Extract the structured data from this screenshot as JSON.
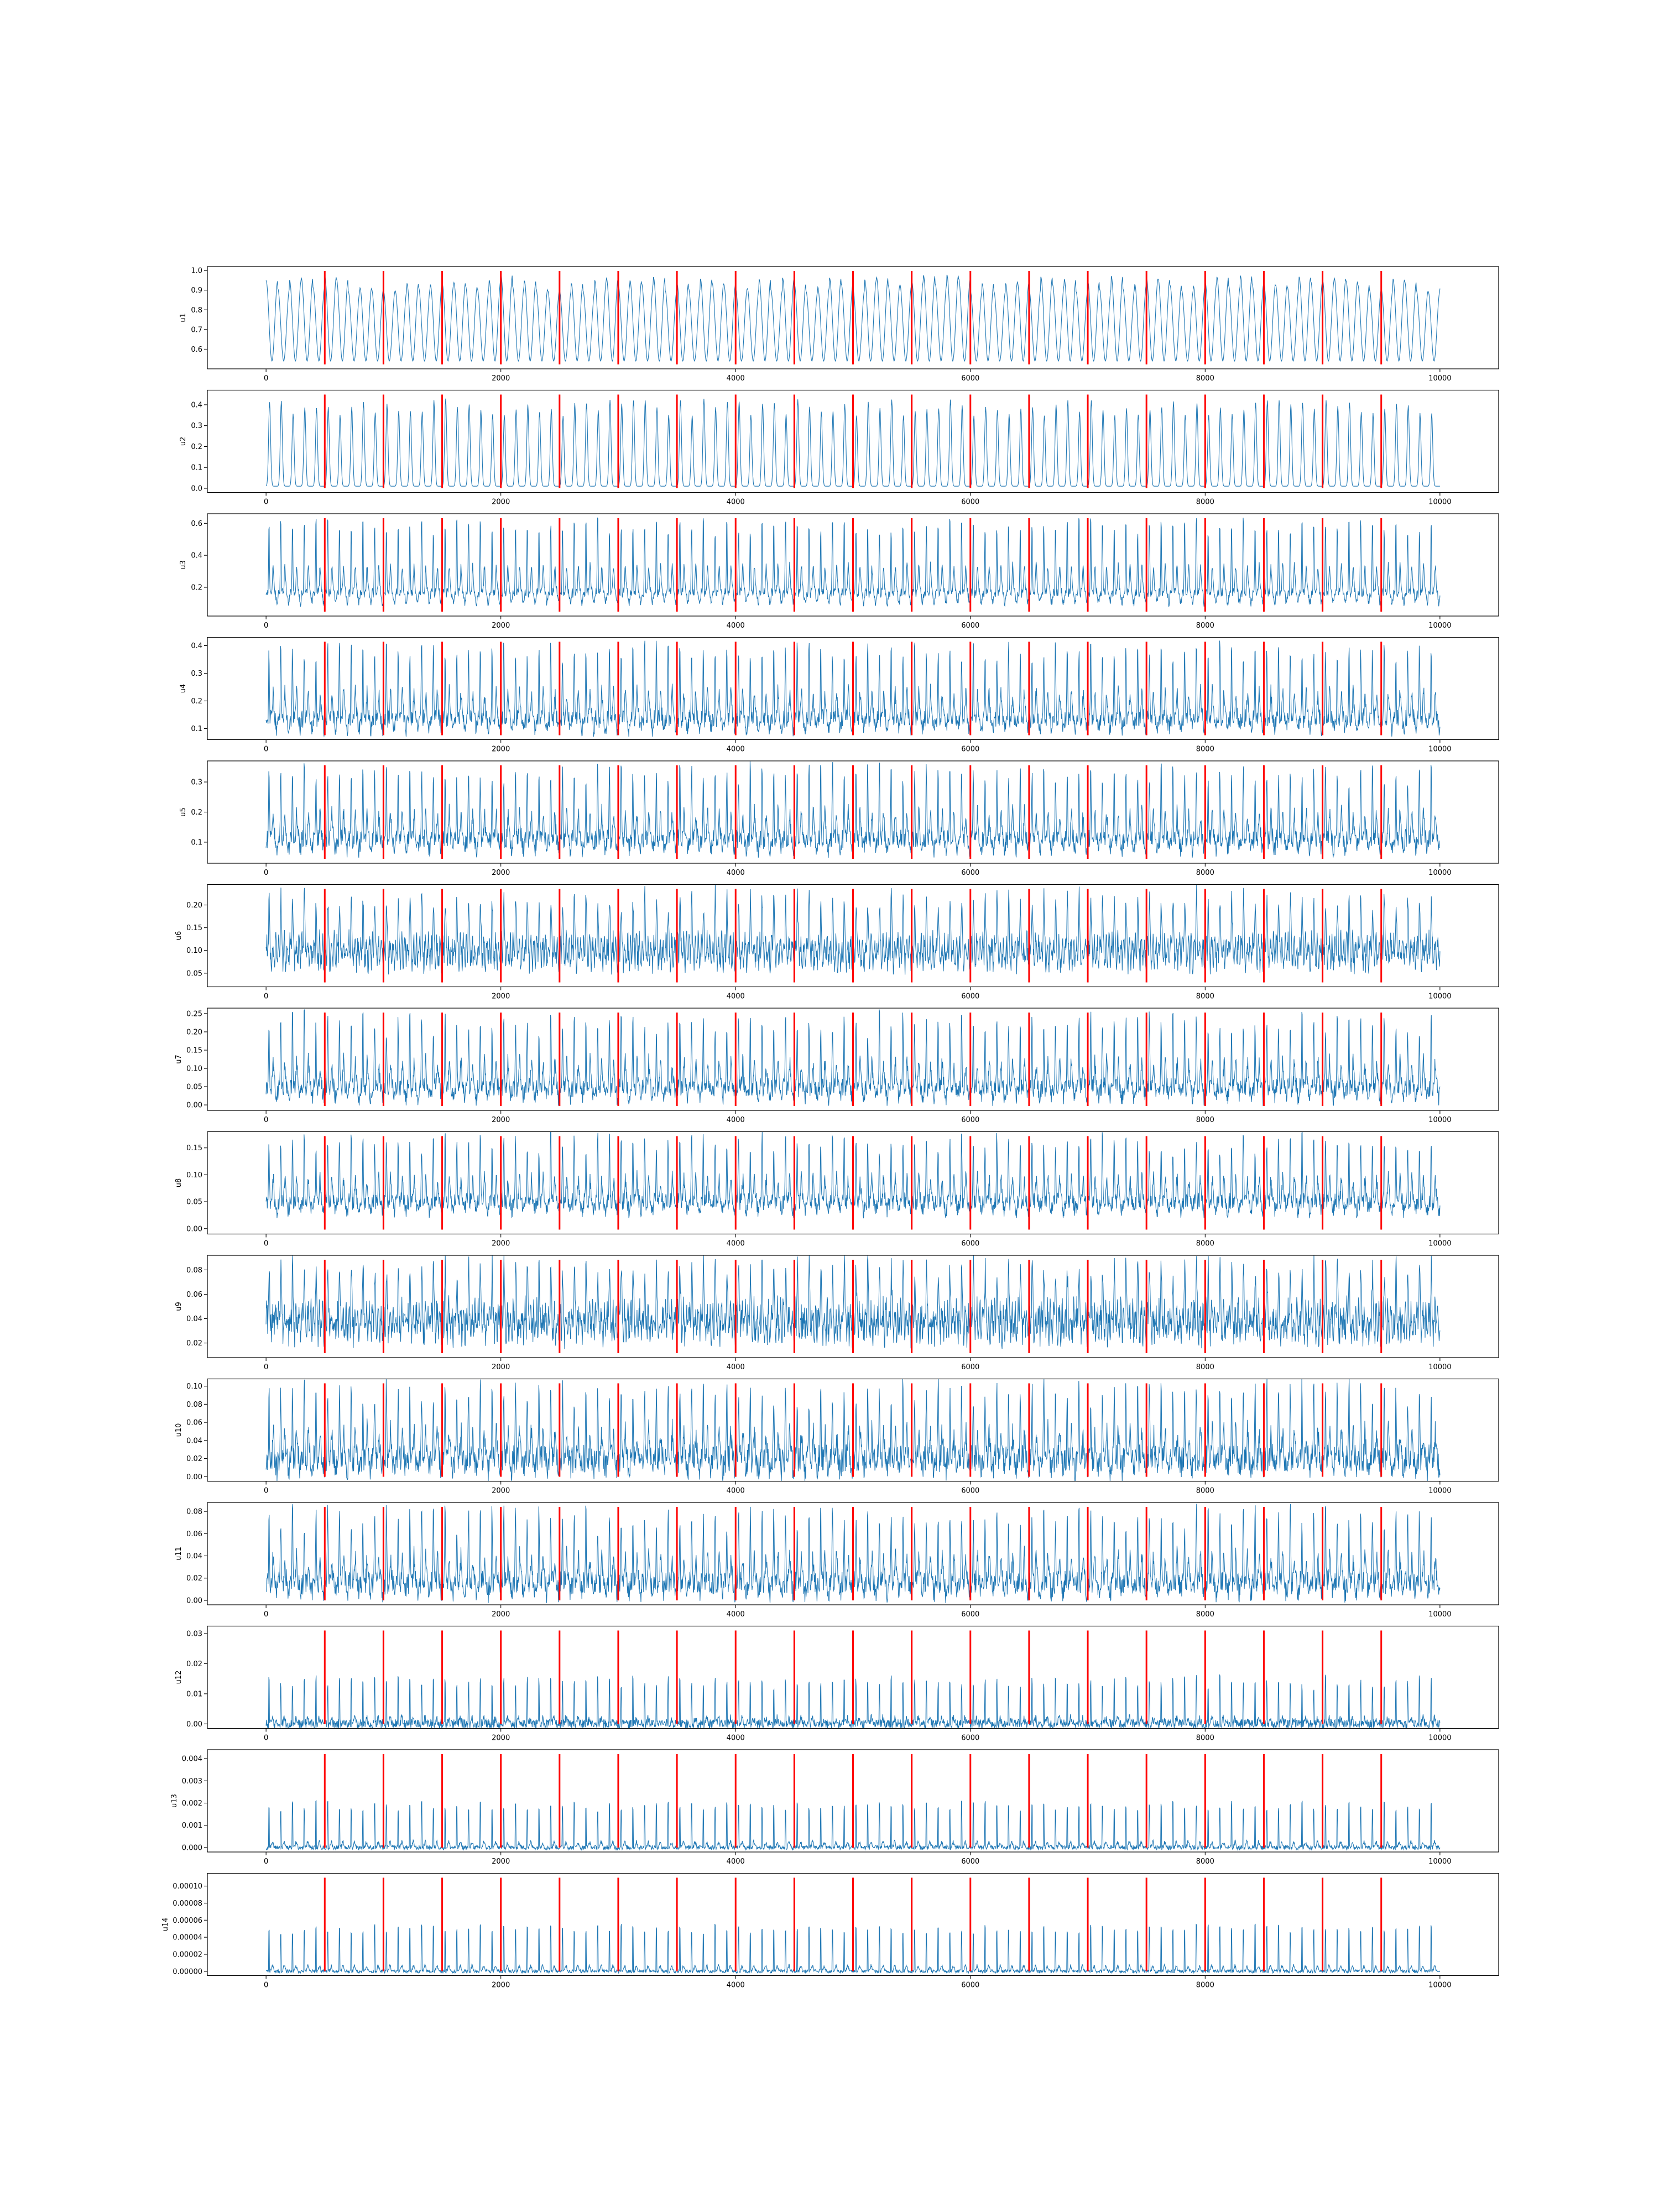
{
  "chart_data": {
    "type": "line",
    "layout": "stacked-subplots",
    "xlim": [
      -500,
      10500
    ],
    "x_ticks": [
      0,
      2000,
      4000,
      6000,
      8000,
      10000
    ],
    "line_color": "#1f77b4",
    "event_color": "#ff0000",
    "event_x": [
      500,
      1000,
      1500,
      2000,
      2500,
      3000,
      3500,
      4000,
      4500,
      5000,
      5500,
      6000,
      6500,
      7000,
      7500,
      8000,
      8500,
      9000,
      9500
    ],
    "x_range": [
      0,
      10000
    ],
    "panels": [
      {
        "ylabel": "u1",
        "ylim": [
          0.5,
          1.02
        ],
        "yticks": [
          0.6,
          0.7,
          0.8,
          0.9,
          1.0
        ],
        "ytick_labels": [
          "0.6",
          "0.7",
          "0.8",
          "0.9",
          "1.0"
        ],
        "signal": {
          "base": 0.54,
          "amplitude": 0.44,
          "period": 100,
          "shape": "sine",
          "noise": 0.0
        }
      },
      {
        "ylabel": "u2",
        "ylim": [
          -0.02,
          0.47
        ],
        "yticks": [
          0.0,
          0.1,
          0.2,
          0.3,
          0.4
        ],
        "ytick_labels": [
          "0.0",
          "0.1",
          "0.2",
          "0.3",
          "0.4"
        ],
        "signal": {
          "base": 0.01,
          "amplitude": 0.42,
          "period": 100,
          "shape": "peaky",
          "noise": 0.0
        }
      },
      {
        "ylabel": "u3",
        "ylim": [
          0.02,
          0.66
        ],
        "yticks": [
          0.2,
          0.4,
          0.6
        ],
        "ytick_labels": [
          "0.2",
          "0.4",
          "0.6"
        ],
        "signal": {
          "base": 0.05,
          "amplitude": 0.58,
          "period": 100,
          "shape": "spiky",
          "noise": 0.05
        }
      },
      {
        "ylabel": "u4",
        "ylim": [
          0.06,
          0.43
        ],
        "yticks": [
          0.1,
          0.2,
          0.3,
          0.4
        ],
        "ytick_labels": [
          "0.1",
          "0.2",
          "0.3",
          "0.4"
        ],
        "signal": {
          "base": 0.07,
          "amplitude": 0.33,
          "period": 100,
          "shape": "spiky",
          "noise": 0.06
        }
      },
      {
        "ylabel": "u5",
        "ylim": [
          0.03,
          0.37
        ],
        "yticks": [
          0.1,
          0.2,
          0.3
        ],
        "ytick_labels": [
          "0.1",
          "0.2",
          "0.3"
        ],
        "signal": {
          "base": 0.05,
          "amplitude": 0.3,
          "period": 100,
          "shape": "spiky",
          "noise": 0.06
        }
      },
      {
        "ylabel": "u6",
        "ylim": [
          0.02,
          0.245
        ],
        "yticks": [
          0.05,
          0.1,
          0.15,
          0.2
        ],
        "ytick_labels": [
          "0.05",
          "0.10",
          "0.15",
          "0.20"
        ],
        "signal": {
          "base": 0.04,
          "amplitude": 0.18,
          "period": 100,
          "shape": "dense",
          "noise": 0.05
        }
      },
      {
        "ylabel": "u7",
        "ylim": [
          -0.015,
          0.265
        ],
        "yticks": [
          0.0,
          0.05,
          0.1,
          0.15,
          0.2,
          0.25
        ],
        "ytick_labels": [
          "0.00",
          "0.05",
          "0.10",
          "0.15",
          "0.20",
          "0.25"
        ],
        "signal": {
          "base": 0.0,
          "amplitude": 0.24,
          "period": 100,
          "shape": "spiky",
          "noise": 0.05
        }
      },
      {
        "ylabel": "u8",
        "ylim": [
          -0.01,
          0.18
        ],
        "yticks": [
          0.0,
          0.05,
          0.1,
          0.15
        ],
        "ytick_labels": [
          "0.00",
          "0.05",
          "0.10",
          "0.15"
        ],
        "signal": {
          "base": 0.02,
          "amplitude": 0.15,
          "period": 100,
          "shape": "spiky",
          "noise": 0.03
        }
      },
      {
        "ylabel": "u9",
        "ylim": [
          0.008,
          0.092
        ],
        "yticks": [
          0.02,
          0.04,
          0.06,
          0.08
        ],
        "ytick_labels": [
          "0.02",
          "0.04",
          "0.06",
          "0.08"
        ],
        "signal": {
          "base": 0.015,
          "amplitude": 0.07,
          "period": 100,
          "shape": "dense",
          "noise": 0.025
        }
      },
      {
        "ylabel": "u10",
        "ylim": [
          -0.005,
          0.108
        ],
        "yticks": [
          0.0,
          0.02,
          0.04,
          0.06,
          0.08,
          0.1
        ],
        "ytick_labels": [
          "0.00",
          "0.02",
          "0.04",
          "0.06",
          "0.08",
          "0.10"
        ],
        "signal": {
          "base": 0.0,
          "amplitude": 0.1,
          "period": 100,
          "shape": "spiky",
          "noise": 0.03
        }
      },
      {
        "ylabel": "u11",
        "ylim": [
          -0.004,
          0.088
        ],
        "yticks": [
          0.0,
          0.02,
          0.04,
          0.06,
          0.08
        ],
        "ytick_labels": [
          "0.00",
          "0.02",
          "0.04",
          "0.06",
          "0.08"
        ],
        "signal": {
          "base": 0.0,
          "amplitude": 0.08,
          "period": 100,
          "shape": "spiky",
          "noise": 0.02
        }
      },
      {
        "ylabel": "u12",
        "ylim": [
          -0.0015,
          0.0325
        ],
        "yticks": [
          0.0,
          0.01,
          0.02,
          0.03
        ],
        "ytick_labels": [
          "0.00",
          "0.01",
          "0.02",
          "0.03"
        ],
        "signal": {
          "base": 0.0,
          "amplitude": 0.03,
          "period": 100,
          "shape": "sharp",
          "noise": 0.003
        }
      },
      {
        "ylabel": "u13",
        "ylim": [
          -0.0002,
          0.0044
        ],
        "yticks": [
          0.0,
          0.001,
          0.002,
          0.003,
          0.004
        ],
        "ytick_labels": [
          "0.000",
          "0.001",
          "0.002",
          "0.003",
          "0.004"
        ],
        "signal": {
          "base": 0.0,
          "amplitude": 0.0041,
          "period": 100,
          "shape": "sharp",
          "noise": 0.0002
        }
      },
      {
        "ylabel": "u14",
        "ylim": [
          -5e-06,
          0.000115
        ],
        "yticks": [
          0.0,
          2e-05,
          4e-05,
          6e-05,
          8e-05,
          0.0001
        ],
        "ytick_labels": [
          "0.00000",
          "0.00002",
          "0.00004",
          "0.00006",
          "0.00008",
          "0.00010"
        ],
        "signal": {
          "base": 0.0,
          "amplitude": 0.00011,
          "period": 100,
          "shape": "sharp",
          "noise": 4e-06
        }
      }
    ]
  }
}
